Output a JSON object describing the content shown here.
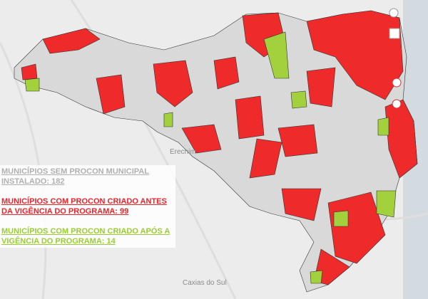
{
  "map": {
    "places": [
      "Erechim",
      "Caxias do Sul"
    ],
    "legend": {
      "items": [
        {
          "label": "MUNICÍPIOS SEM PROCON MUNICIPAL INSTALADO:",
          "count": 182,
          "color": "#d9d9d9",
          "text_color": "#b0b0b0"
        },
        {
          "label": "MUNICÍPIOS COM PROCON CRIADO ANTES DA VIGÊNCIA DO PROGRAMA:",
          "count": 99,
          "color": "#ee2a2a",
          "text_color": "#e8242b"
        },
        {
          "label": "MUNICÍPIOS COM PROCON CRIADO APÓS A VIGÊNCIA DO PROGRAMA:",
          "count": 14,
          "color": "#a3d13d",
          "text_color": "#9acd32"
        }
      ]
    }
  }
}
